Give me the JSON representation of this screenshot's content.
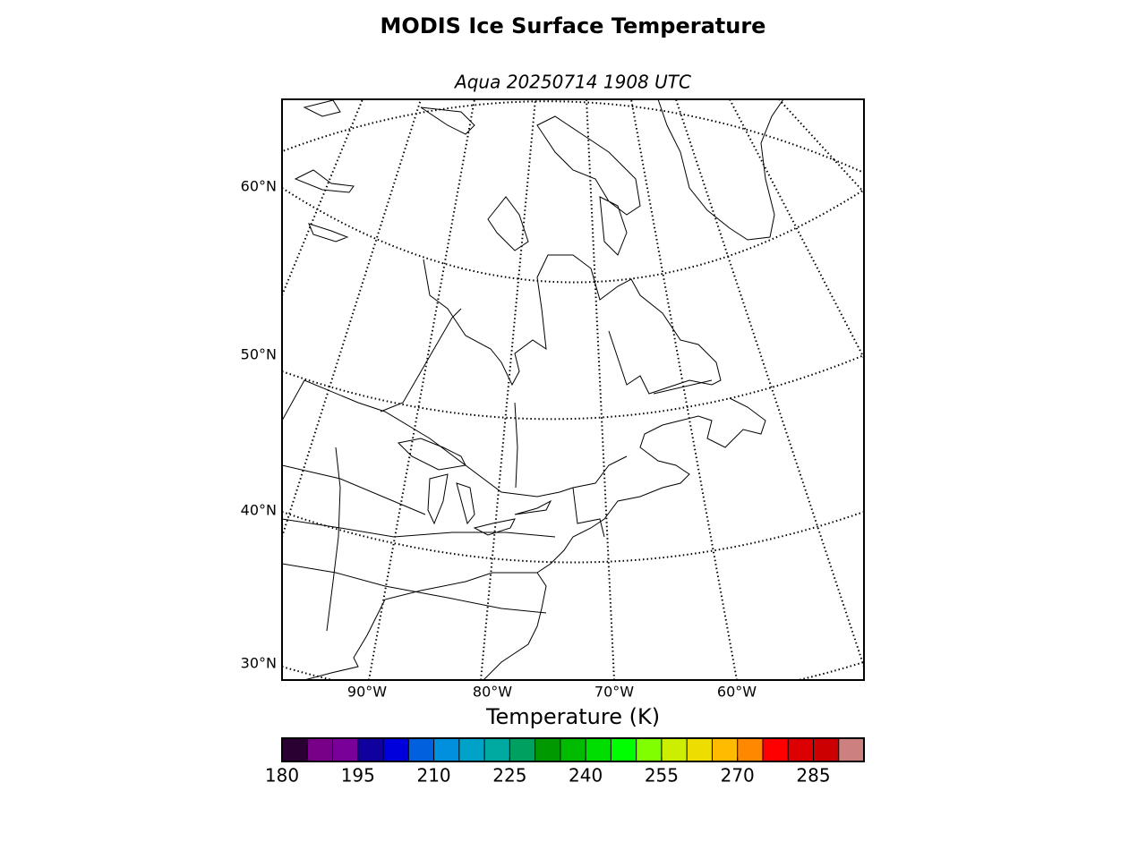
{
  "title": "MODIS Ice Surface Temperature",
  "subtitle": "Aqua 20250714 1908 UTC",
  "map": {
    "lat_labels": [
      "60°N",
      "50°N",
      "40°N",
      "30°N"
    ],
    "lon_labels": [
      "90°W",
      "80°W",
      "70°W",
      "60°W"
    ]
  },
  "colorbar": {
    "label": "Temperature (K)",
    "lim": [
      180,
      295
    ],
    "levels": [
      180,
      185,
      190,
      195,
      200,
      205,
      210,
      215,
      220,
      225,
      230,
      235,
      240,
      245,
      250,
      255,
      260,
      265,
      270,
      275,
      280,
      285,
      290,
      295
    ],
    "colors": [
      "#2a0033",
      "#780088",
      "#7a009a",
      "#10009e",
      "#0000dd",
      "#0060dd",
      "#0090dd",
      "#00a2c8",
      "#00aaa0",
      "#00a060",
      "#009900",
      "#00bb00",
      "#00dd00",
      "#00ff00",
      "#80ff00",
      "#ccee00",
      "#eedd00",
      "#ffbb00",
      "#ff8800",
      "#ff0000",
      "#dd0000",
      "#cc0000",
      "#cc8080"
    ],
    "ticks": [
      180,
      195,
      210,
      225,
      240,
      255,
      270,
      285
    ]
  }
}
